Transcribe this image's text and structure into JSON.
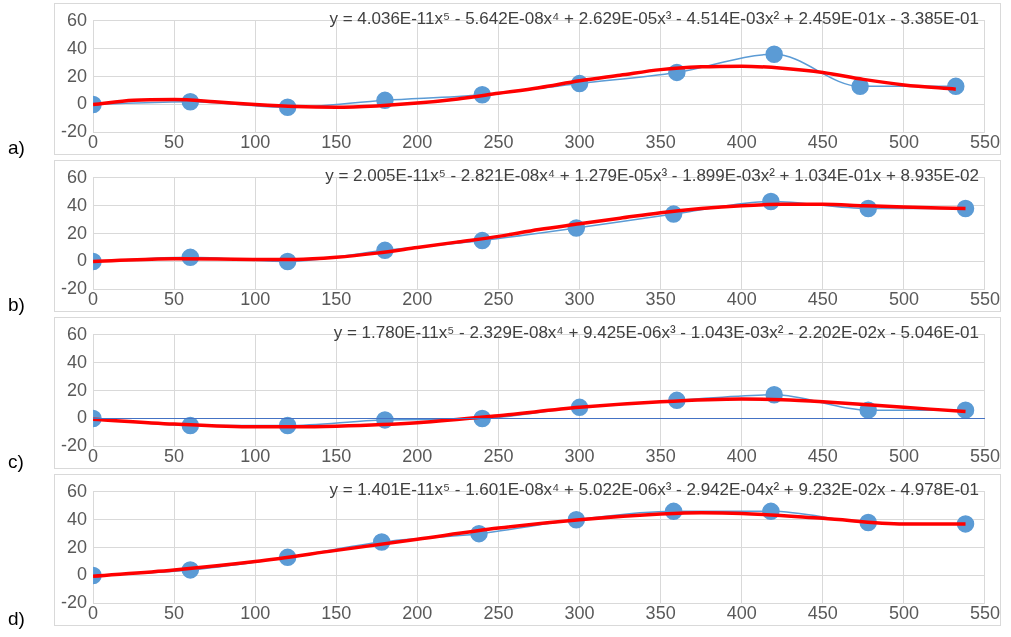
{
  "chart_data": [
    {
      "type": "line",
      "annotations": [
        "y = 4.036E-11x⁵ - 5.642E-08x⁴ + 2.629E-05x³ - 4.514E-03x² + 2.459E-01x - 3.385E-01",
        "a)"
      ],
      "xlim": [
        0,
        550
      ],
      "ylim": [
        -20,
        60
      ],
      "xticks": [
        0,
        50,
        100,
        150,
        200,
        250,
        300,
        350,
        400,
        450,
        500,
        550
      ],
      "yticks": [
        -20,
        0,
        20,
        40,
        60
      ],
      "grid": true,
      "legend": false,
      "series": [
        {
          "type": "line",
          "marker": "circle",
          "color": "#5b9bd5",
          "x": [
            0,
            60,
            120,
            180,
            240,
            300,
            360,
            420,
            473,
            532
          ],
          "values": [
            0,
            2,
            -2,
            3,
            7,
            15,
            23,
            36,
            13,
            13
          ]
        },
        {
          "type": "line",
          "marker": "none",
          "color": "#ff0000",
          "x": [
            0,
            25,
            50,
            75,
            100,
            125,
            150,
            175,
            200,
            225,
            250,
            275,
            300,
            325,
            350,
            375,
            400,
            425,
            450,
            475,
            500,
            532
          ],
          "values": [
            0,
            3,
            3.5,
            2,
            0,
            -1.5,
            -2,
            -1,
            1,
            4,
            8,
            12,
            17,
            21,
            25,
            27,
            27.5,
            26,
            23,
            18,
            14,
            11
          ]
        }
      ]
    },
    {
      "type": "line",
      "annotations": [
        "y = 2.005E-11x⁵ - 2.821E-08x⁴ + 1.279E-05x³ - 1.899E-03x² + 1.034E-01x + 8.935E-02",
        "b)"
      ],
      "xlim": [
        0,
        550
      ],
      "ylim": [
        -20,
        60
      ],
      "xticks": [
        0,
        50,
        100,
        150,
        200,
        250,
        300,
        350,
        400,
        450,
        500,
        550
      ],
      "yticks": [
        -20,
        0,
        20,
        40,
        60
      ],
      "grid": true,
      "legend": false,
      "series": [
        {
          "type": "line",
          "marker": "circle",
          "color": "#5b9bd5",
          "x": [
            0,
            60,
            120,
            180,
            240,
            298,
            358,
            418,
            478,
            538
          ],
          "values": [
            0,
            3,
            0,
            8,
            15,
            24,
            34,
            43,
            38,
            38
          ]
        },
        {
          "type": "line",
          "marker": "none",
          "color": "#ff0000",
          "x": [
            0,
            50,
            100,
            125,
            150,
            175,
            200,
            225,
            250,
            275,
            300,
            325,
            350,
            375,
            400,
            425,
            450,
            475,
            500,
            538
          ],
          "values": [
            0,
            2,
            1.5,
            1.5,
            3,
            6,
            10,
            14,
            18,
            23,
            27,
            31,
            35,
            38,
            40,
            41,
            41,
            40,
            39,
            38
          ]
        }
      ]
    },
    {
      "type": "line",
      "annotations": [
        "y = 1.780E-11x⁵ - 2.329E-08x⁴ + 9.425E-06x³ - 1.043E-03x² - 2.202E-02x - 5.046E-01",
        "c)"
      ],
      "xlim": [
        0,
        550
      ],
      "ylim": [
        -20,
        60
      ],
      "xticks": [
        0,
        50,
        100,
        150,
        200,
        250,
        300,
        350,
        400,
        450,
        500,
        550
      ],
      "yticks": [
        -20,
        0,
        20,
        40,
        60
      ],
      "grid": true,
      "legend": false,
      "ref_lines": [
        {
          "axis": "y",
          "value": 0,
          "color": "#4472c4"
        }
      ],
      "series": [
        {
          "type": "line",
          "marker": "circle",
          "color": "#5b9bd5",
          "x": [
            0,
            60,
            120,
            180,
            240,
            300,
            360,
            420,
            478,
            538
          ],
          "values": [
            0,
            -5,
            -5,
            -1,
            0,
            8,
            13,
            17,
            6,
            6
          ]
        },
        {
          "type": "line",
          "marker": "none",
          "color": "#ff0000",
          "x": [
            0,
            50,
            100,
            125,
            150,
            200,
            250,
            300,
            350,
            400,
            425,
            450,
            500,
            538
          ],
          "values": [
            -0.5,
            -4,
            -6,
            -6,
            -5.5,
            -3,
            2,
            8,
            12,
            14,
            13.5,
            12,
            8,
            5
          ]
        }
      ]
    },
    {
      "type": "line",
      "annotations": [
        "y = 1.401E-11x⁵ - 1.601E-08x⁴ + 5.022E-06x³ - 2.942E-04x² + 9.232E-02x - 4.978E-01",
        "d)"
      ],
      "xlim": [
        0,
        550
      ],
      "ylim": [
        -20,
        60
      ],
      "xticks": [
        0,
        50,
        100,
        150,
        200,
        250,
        300,
        350,
        400,
        450,
        500,
        550
      ],
      "yticks": [
        -20,
        0,
        20,
        40,
        60
      ],
      "grid": true,
      "legend": false,
      "series": [
        {
          "type": "line",
          "marker": "circle",
          "color": "#5b9bd5",
          "x": [
            0,
            60,
            120,
            178,
            238,
            298,
            358,
            418,
            478,
            538
          ],
          "values": [
            0,
            4,
            13,
            24,
            30,
            40,
            46,
            46,
            38,
            37
          ]
        },
        {
          "type": "line",
          "marker": "none",
          "color": "#ff0000",
          "x": [
            0,
            50,
            100,
            150,
            200,
            250,
            300,
            350,
            375,
            400,
            450,
            500,
            538
          ],
          "values": [
            -0.5,
            4,
            10,
            18,
            26,
            34,
            40,
            44,
            45,
            44.5,
            41,
            37,
            37
          ]
        }
      ]
    }
  ]
}
